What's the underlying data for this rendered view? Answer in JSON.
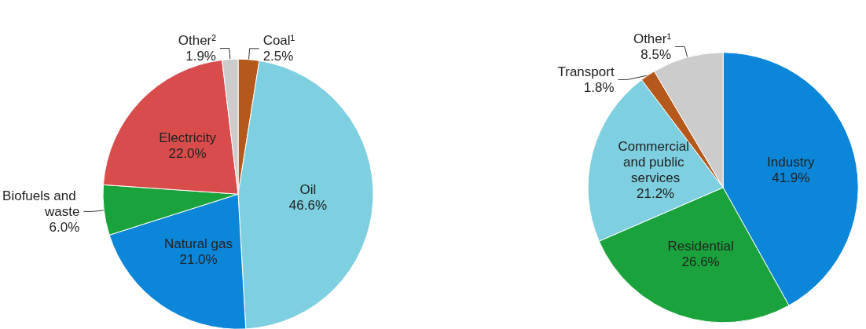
{
  "chart_data": [
    {
      "type": "pie",
      "categories": [
        "Coal¹",
        "Oil",
        "Natural gas",
        "Biofuels and waste",
        "Electricity",
        "Other²"
      ],
      "values": [
        2.5,
        46.6,
        21.0,
        6.0,
        22.0,
        1.9
      ],
      "value_labels": [
        "2.5%",
        "46.6%",
        "21.0%",
        "6.0%",
        "22.0%",
        "1.9%"
      ],
      "colors": [
        "#b5581c",
        "#7ecfe0",
        "#0c86d8",
        "#1aa33c",
        "#d94c4c",
        "#cccccc"
      ]
    },
    {
      "type": "pie",
      "categories": [
        "Industry",
        "Residential",
        "Commercial and public services",
        "Transport",
        "Other¹"
      ],
      "values": [
        41.9,
        26.6,
        21.2,
        1.8,
        8.5
      ],
      "value_labels": [
        "41.9%",
        "26.6%",
        "21.2%",
        "1.8%",
        "8.5%"
      ],
      "colors": [
        "#0c86d8",
        "#1aa33c",
        "#7ecfe0",
        "#b5581c",
        "#cccccc"
      ]
    }
  ]
}
